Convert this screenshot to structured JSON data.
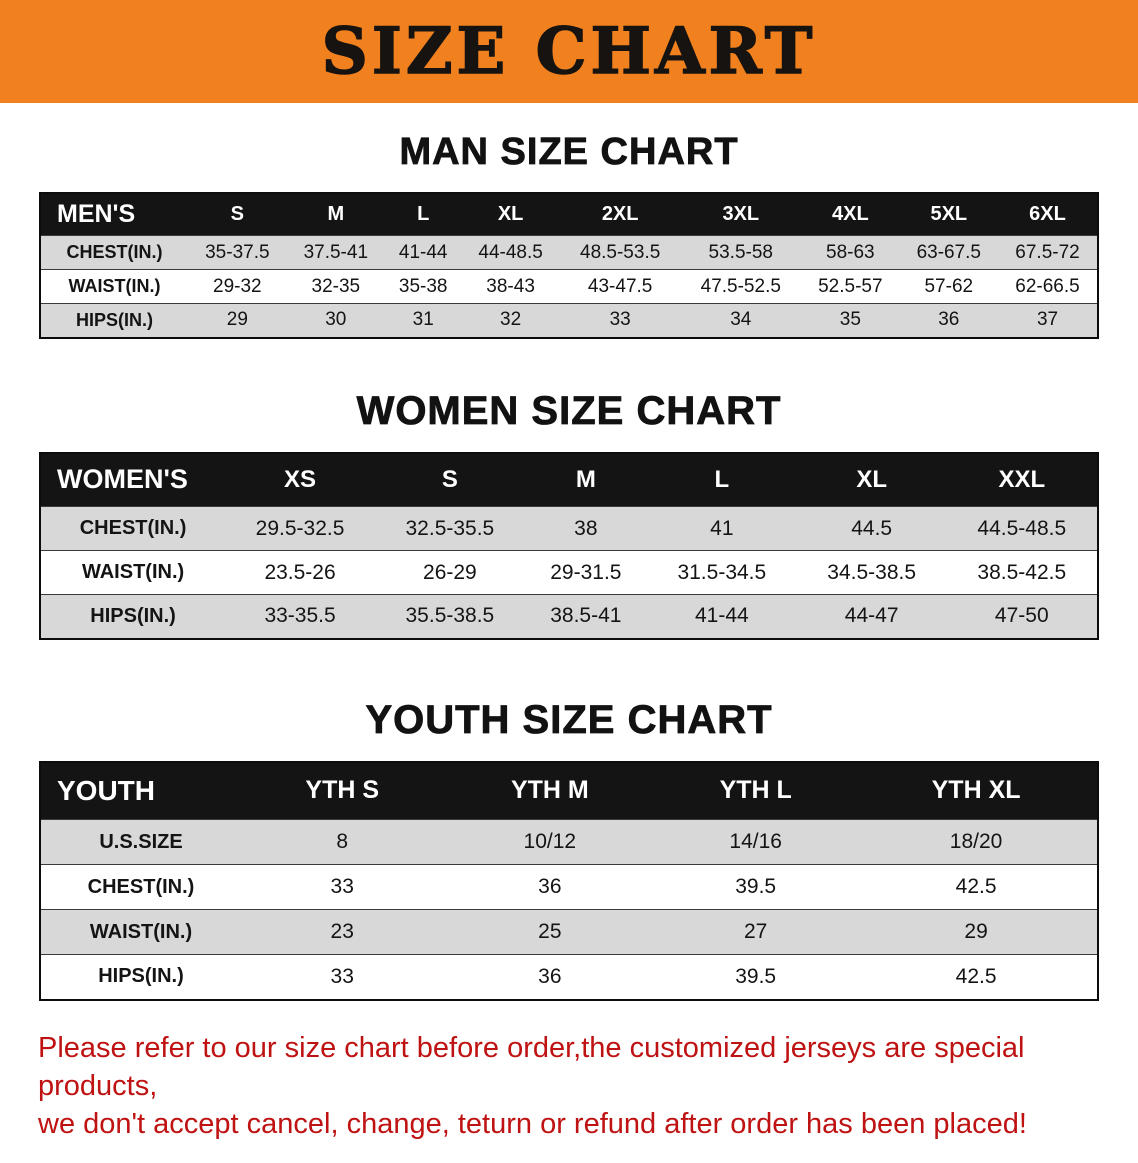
{
  "banner": {
    "title": "SIZE CHART",
    "bg_color": "#f0811e",
    "text_color": "#171310"
  },
  "tables": {
    "men": {
      "heading": "MAN SIZE CHART",
      "header": [
        "MEN'S",
        "S",
        "M",
        "L",
        "XL",
        "2XL",
        "3XL",
        "4XL",
        "5XL",
        "6XL"
      ],
      "rows": [
        [
          "CHEST(IN.)",
          "35-37.5",
          "37.5-41",
          "41-44",
          "44-48.5",
          "48.5-53.5",
          "53.5-58",
          "58-63",
          "63-67.5",
          "67.5-72"
        ],
        [
          "WAIST(IN.)",
          "29-32",
          "32-35",
          "35-38",
          "38-43",
          "43-47.5",
          "47.5-52.5",
          "52.5-57",
          "57-62",
          "62-66.5"
        ],
        [
          "HIPS(IN.)",
          "29",
          "30",
          "31",
          "32",
          "33",
          "34",
          "35",
          "36",
          "37"
        ]
      ]
    },
    "women": {
      "heading": "WOMEN SIZE CHART",
      "header": [
        "WOMEN'S",
        "XS",
        "S",
        "M",
        "L",
        "XL",
        "XXL"
      ],
      "rows": [
        [
          "CHEST(IN.)",
          "29.5-32.5",
          "32.5-35.5",
          "38",
          "41",
          "44.5",
          "44.5-48.5"
        ],
        [
          "WAIST(IN.)",
          "23.5-26",
          "26-29",
          "29-31.5",
          "31.5-34.5",
          "34.5-38.5",
          "38.5-42.5"
        ],
        [
          "HIPS(IN.)",
          "33-35.5",
          "35.5-38.5",
          "38.5-41",
          "41-44",
          "44-47",
          "47-50"
        ]
      ]
    },
    "youth": {
      "heading": "YOUTH SIZE CHART",
      "header": [
        "YOUTH",
        "YTH S",
        "YTH M",
        "YTH L",
        "YTH XL"
      ],
      "rows": [
        [
          "U.S.SIZE",
          "8",
          "10/12",
          "14/16",
          "18/20"
        ],
        [
          "CHEST(IN.)",
          "33",
          "36",
          "39.5",
          "42.5"
        ],
        [
          "WAIST(IN.)",
          "23",
          "25",
          "27",
          "29"
        ],
        [
          "HIPS(IN.)",
          "33",
          "36",
          "39.5",
          "42.5"
        ]
      ]
    }
  },
  "disclaimer": {
    "line1": "Please refer to our size chart before order,the customized jerseys are special products,",
    "line2": "we don't accept cancel, change, teturn or refund after order has been placed!",
    "text_color": "#bf1212"
  }
}
